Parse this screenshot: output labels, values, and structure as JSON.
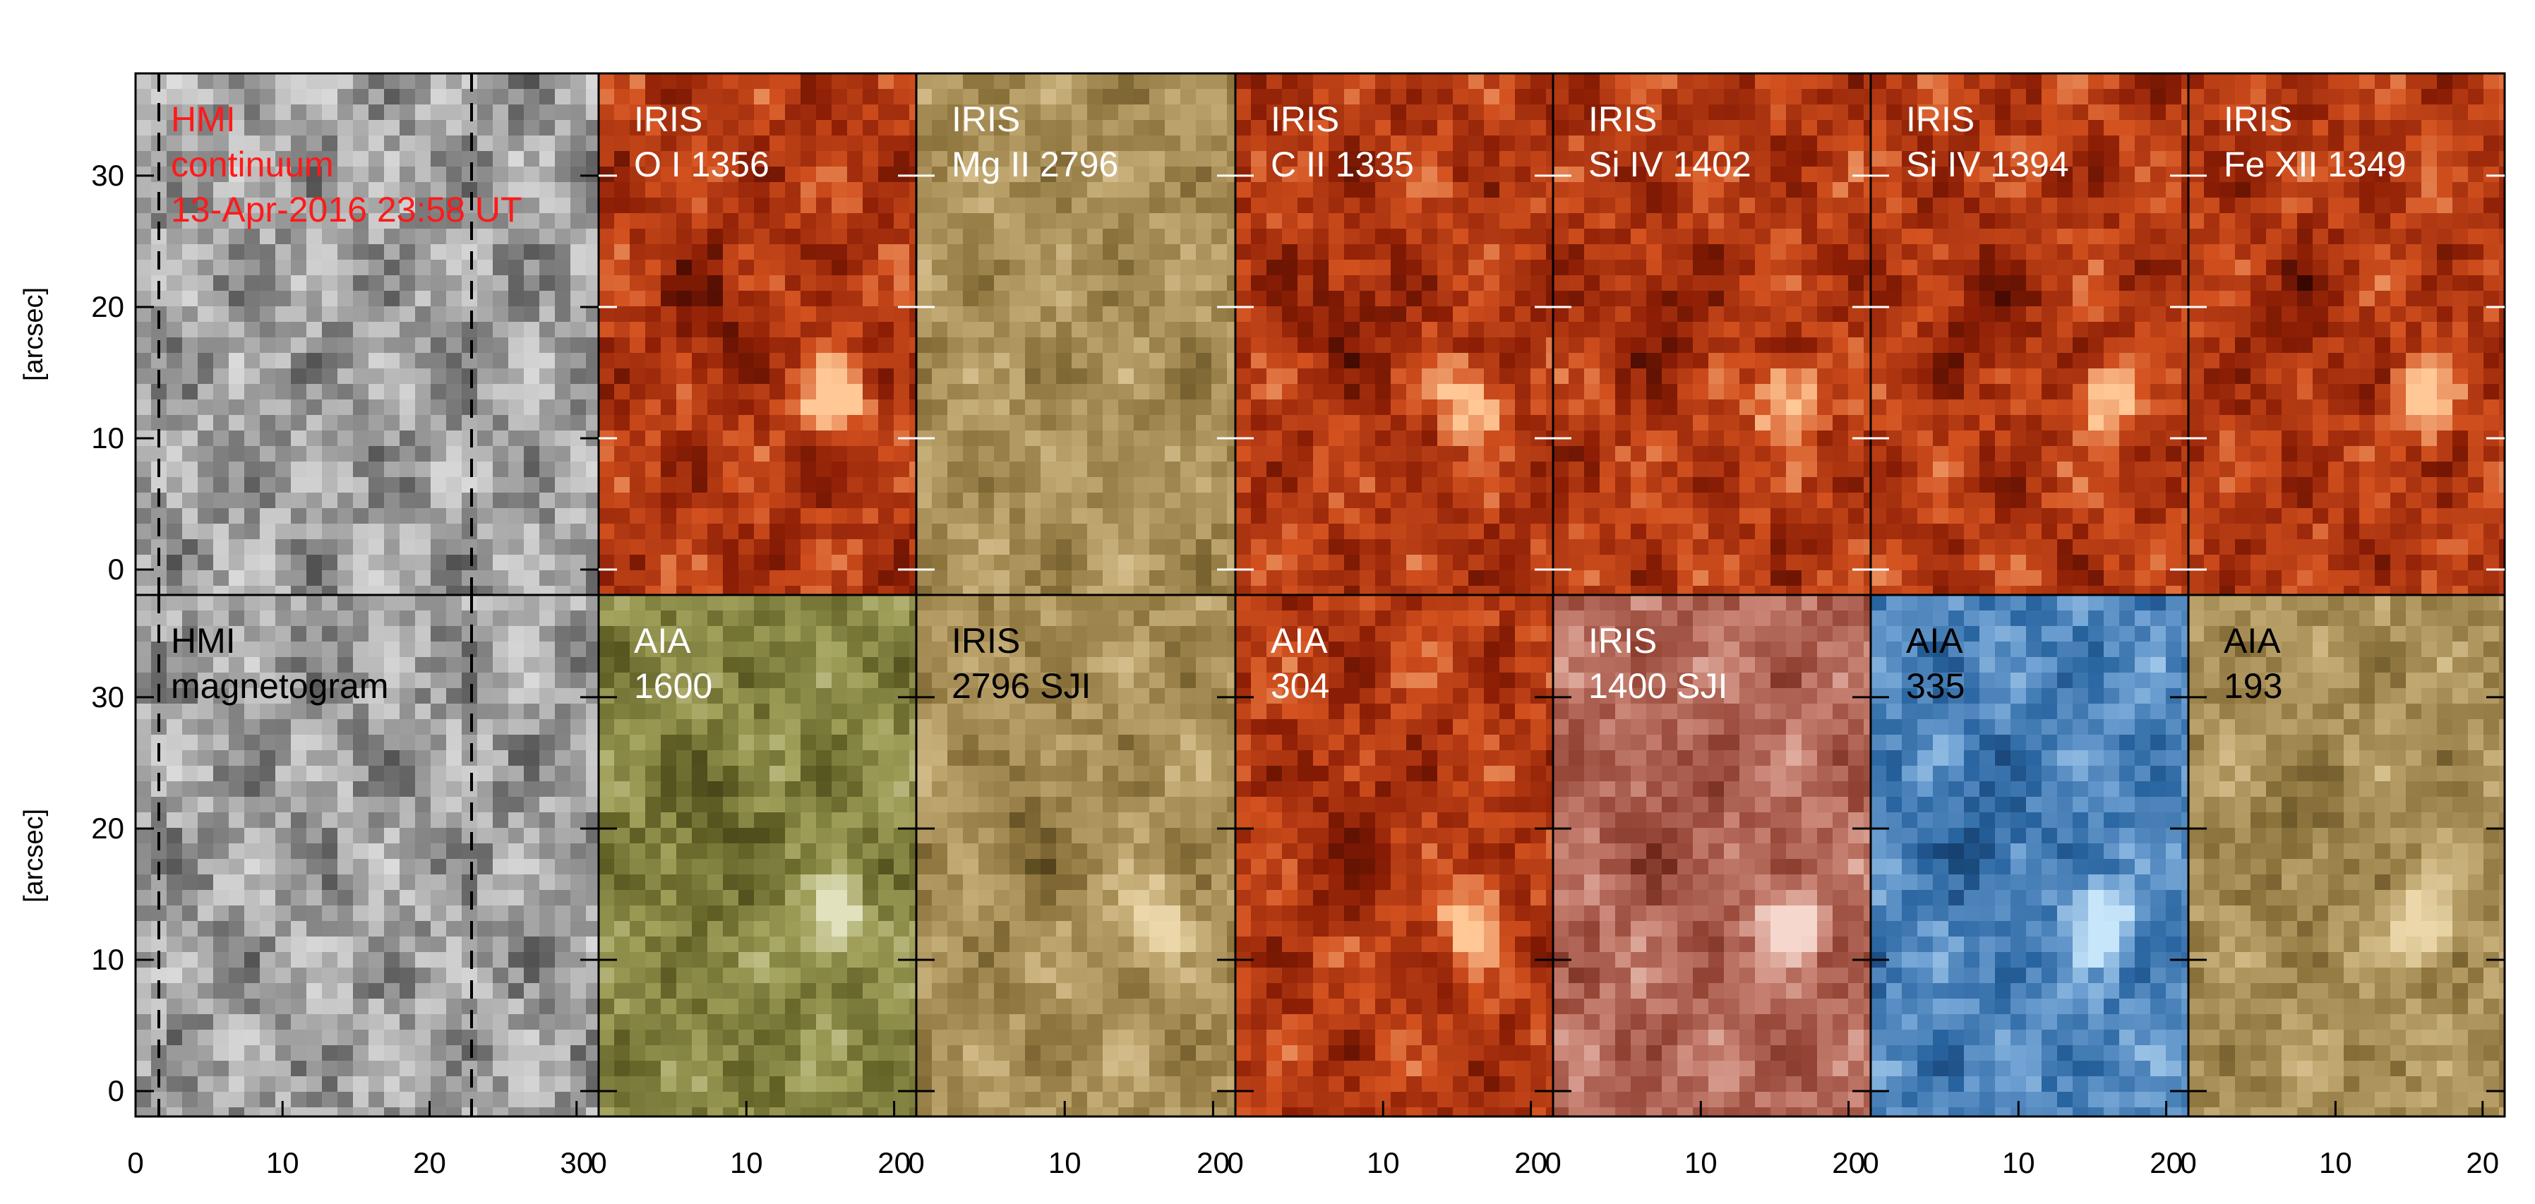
{
  "figure": {
    "ylabel": "[arcsec]",
    "axes": {
      "y_ticks": [
        "0",
        "10",
        "20",
        "30"
      ],
      "x_ticks_first": [
        "0",
        "10",
        "20",
        "30"
      ],
      "x_ticks_other": [
        "0",
        "10",
        "20"
      ]
    },
    "rows": [
      {
        "panels": [
          {
            "lines": [
              "HMI",
              "continuum",
              "13-Apr-2016 23:58 UT"
            ],
            "text_color": "#ff1a1a",
            "palette": [
              "#202020",
              "#f0f0f0"
            ],
            "ramp": "bw",
            "bright_spot": false
          },
          {
            "lines": [
              "IRIS",
              "O I 1356"
            ],
            "text_color": "#ffffff",
            "palette": [
              "#3a0600",
              "#fff0d0"
            ],
            "ramp": "red",
            "bright_spot": true
          },
          {
            "lines": [
              "IRIS",
              "Mg II 2796"
            ],
            "text_color": "#ffffff",
            "palette": [
              "#4a3a10",
              "#f0e4c0"
            ],
            "ramp": "tan",
            "bright_spot": false
          },
          {
            "lines": [
              "IRIS",
              "C II 1335"
            ],
            "text_color": "#ffffff",
            "palette": [
              "#3a0400",
              "#ffe6c8"
            ],
            "ramp": "red",
            "bright_spot": true
          },
          {
            "lines": [
              "IRIS",
              "Si IV 1402"
            ],
            "text_color": "#ffffff",
            "palette": [
              "#3a0600",
              "#ffe8d0"
            ],
            "ramp": "red",
            "bright_spot": true
          },
          {
            "lines": [
              "IRIS",
              "Si IV 1394"
            ],
            "text_color": "#ffffff",
            "palette": [
              "#3a0600",
              "#ffe8d0"
            ],
            "ramp": "red",
            "bright_spot": true
          },
          {
            "lines": [
              "IRIS",
              "Fe XII 1349"
            ],
            "text_color": "#ffffff",
            "palette": [
              "#3a0a00",
              "#ffffff"
            ],
            "ramp": "red",
            "bright_spot": true
          }
        ]
      },
      {
        "panels": [
          {
            "lines": [
              "HMI",
              "magnetogram"
            ],
            "text_color": "#000000",
            "palette": [
              "#707070",
              "#ffffff"
            ],
            "ramp": "bw",
            "bright_spot": false
          },
          {
            "lines": [
              "AIA",
              "1600"
            ],
            "text_color": "#ffffff",
            "palette": [
              "#3a3a10",
              "#f0f0d0"
            ],
            "ramp": "olive",
            "bright_spot": true
          },
          {
            "lines": [
              "IRIS",
              "2796 SJI"
            ],
            "text_color": "#000000",
            "palette": [
              "#4a3a10",
              "#fff8e8"
            ],
            "ramp": "tan",
            "bright_spot": true
          },
          {
            "lines": [
              "AIA",
              "304"
            ],
            "text_color": "#ffffff",
            "palette": [
              "#2a0000",
              "#ffe0a0"
            ],
            "ramp": "red",
            "bright_spot": true
          },
          {
            "lines": [
              "IRIS",
              "1400 SJI"
            ],
            "text_color": "#ffffff",
            "palette": [
              "#5a1808",
              "#ffffff"
            ],
            "ramp": "rose",
            "bright_spot": true
          },
          {
            "lines": [
              "AIA",
              "335"
            ],
            "text_color": "#000000",
            "palette": [
              "#0a2a50",
              "#e0f0ff"
            ],
            "ramp": "blue",
            "bright_spot": true
          },
          {
            "lines": [
              "AIA",
              "193"
            ],
            "text_color": "#000000",
            "palette": [
              "#2a1808",
              "#fff4e0"
            ],
            "ramp": "tan",
            "bright_spot": true
          }
        ]
      }
    ]
  }
}
